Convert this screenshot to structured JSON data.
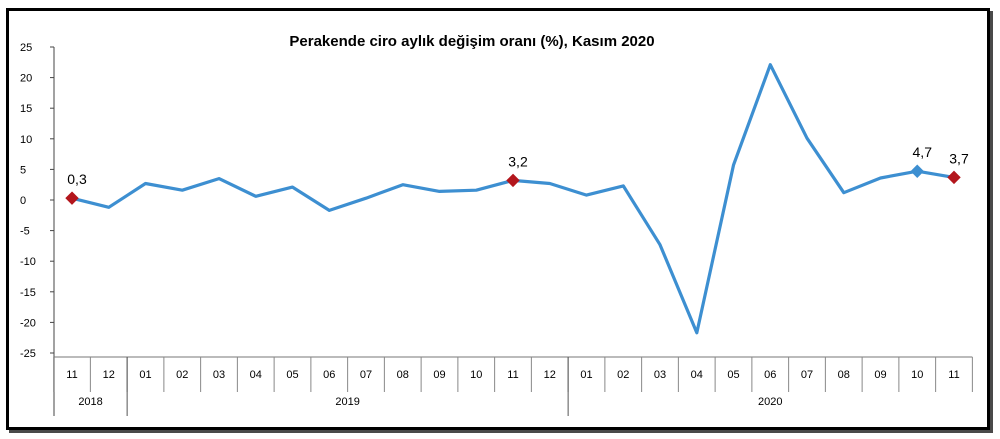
{
  "chart_data": {
    "type": "line",
    "title": "Perakende ciro aylık değişim oranı (%), Kasım 2020",
    "xlabel": "",
    "ylabel": "",
    "ylim": [
      -25,
      25
    ],
    "yticks": [
      25,
      20,
      15,
      10,
      5,
      0,
      -5,
      -10,
      -15,
      -20,
      -25
    ],
    "ytick_labels": [
      "25",
      "20",
      "15",
      "10",
      "5",
      "0",
      "-5",
      "-10",
      "-15",
      "-20",
      "-25"
    ],
    "grid": false,
    "legend": "none",
    "line_color": "#3d8fd1",
    "highlight_color": "#b3161d",
    "categories": [
      "11",
      "12",
      "01",
      "02",
      "03",
      "04",
      "05",
      "06",
      "07",
      "08",
      "09",
      "10",
      "11",
      "12",
      "01",
      "02",
      "03",
      "04",
      "05",
      "06",
      "07",
      "08",
      "09",
      "10",
      "11"
    ],
    "year_groups": [
      {
        "label": "2018",
        "start": 0,
        "end": 1
      },
      {
        "label": "2019",
        "start": 2,
        "end": 13
      },
      {
        "label": "2020",
        "start": 14,
        "end": 24
      }
    ],
    "series": [
      {
        "values": [
          0.3,
          -1.2,
          2.7,
          1.6,
          3.5,
          0.6,
          2.1,
          -1.7,
          0.3,
          2.5,
          1.4,
          1.6,
          3.2,
          2.7,
          0.8,
          2.3,
          -7.3,
          -21.7,
          5.7,
          22.1,
          10.1,
          1.2,
          3.6,
          4.7,
          3.7
        ]
      }
    ],
    "labeled_points": [
      {
        "index": 0,
        "text": "0,3",
        "marker": "diamond",
        "color": "#b3161d"
      },
      {
        "index": 12,
        "text": "3,2",
        "marker": "diamond",
        "color": "#b3161d"
      },
      {
        "index": 23,
        "text": "4,7",
        "marker": "diamond",
        "color": "#3d8fd1"
      },
      {
        "index": 24,
        "text": "3,7",
        "marker": "diamond",
        "color": "#b3161d"
      }
    ]
  }
}
